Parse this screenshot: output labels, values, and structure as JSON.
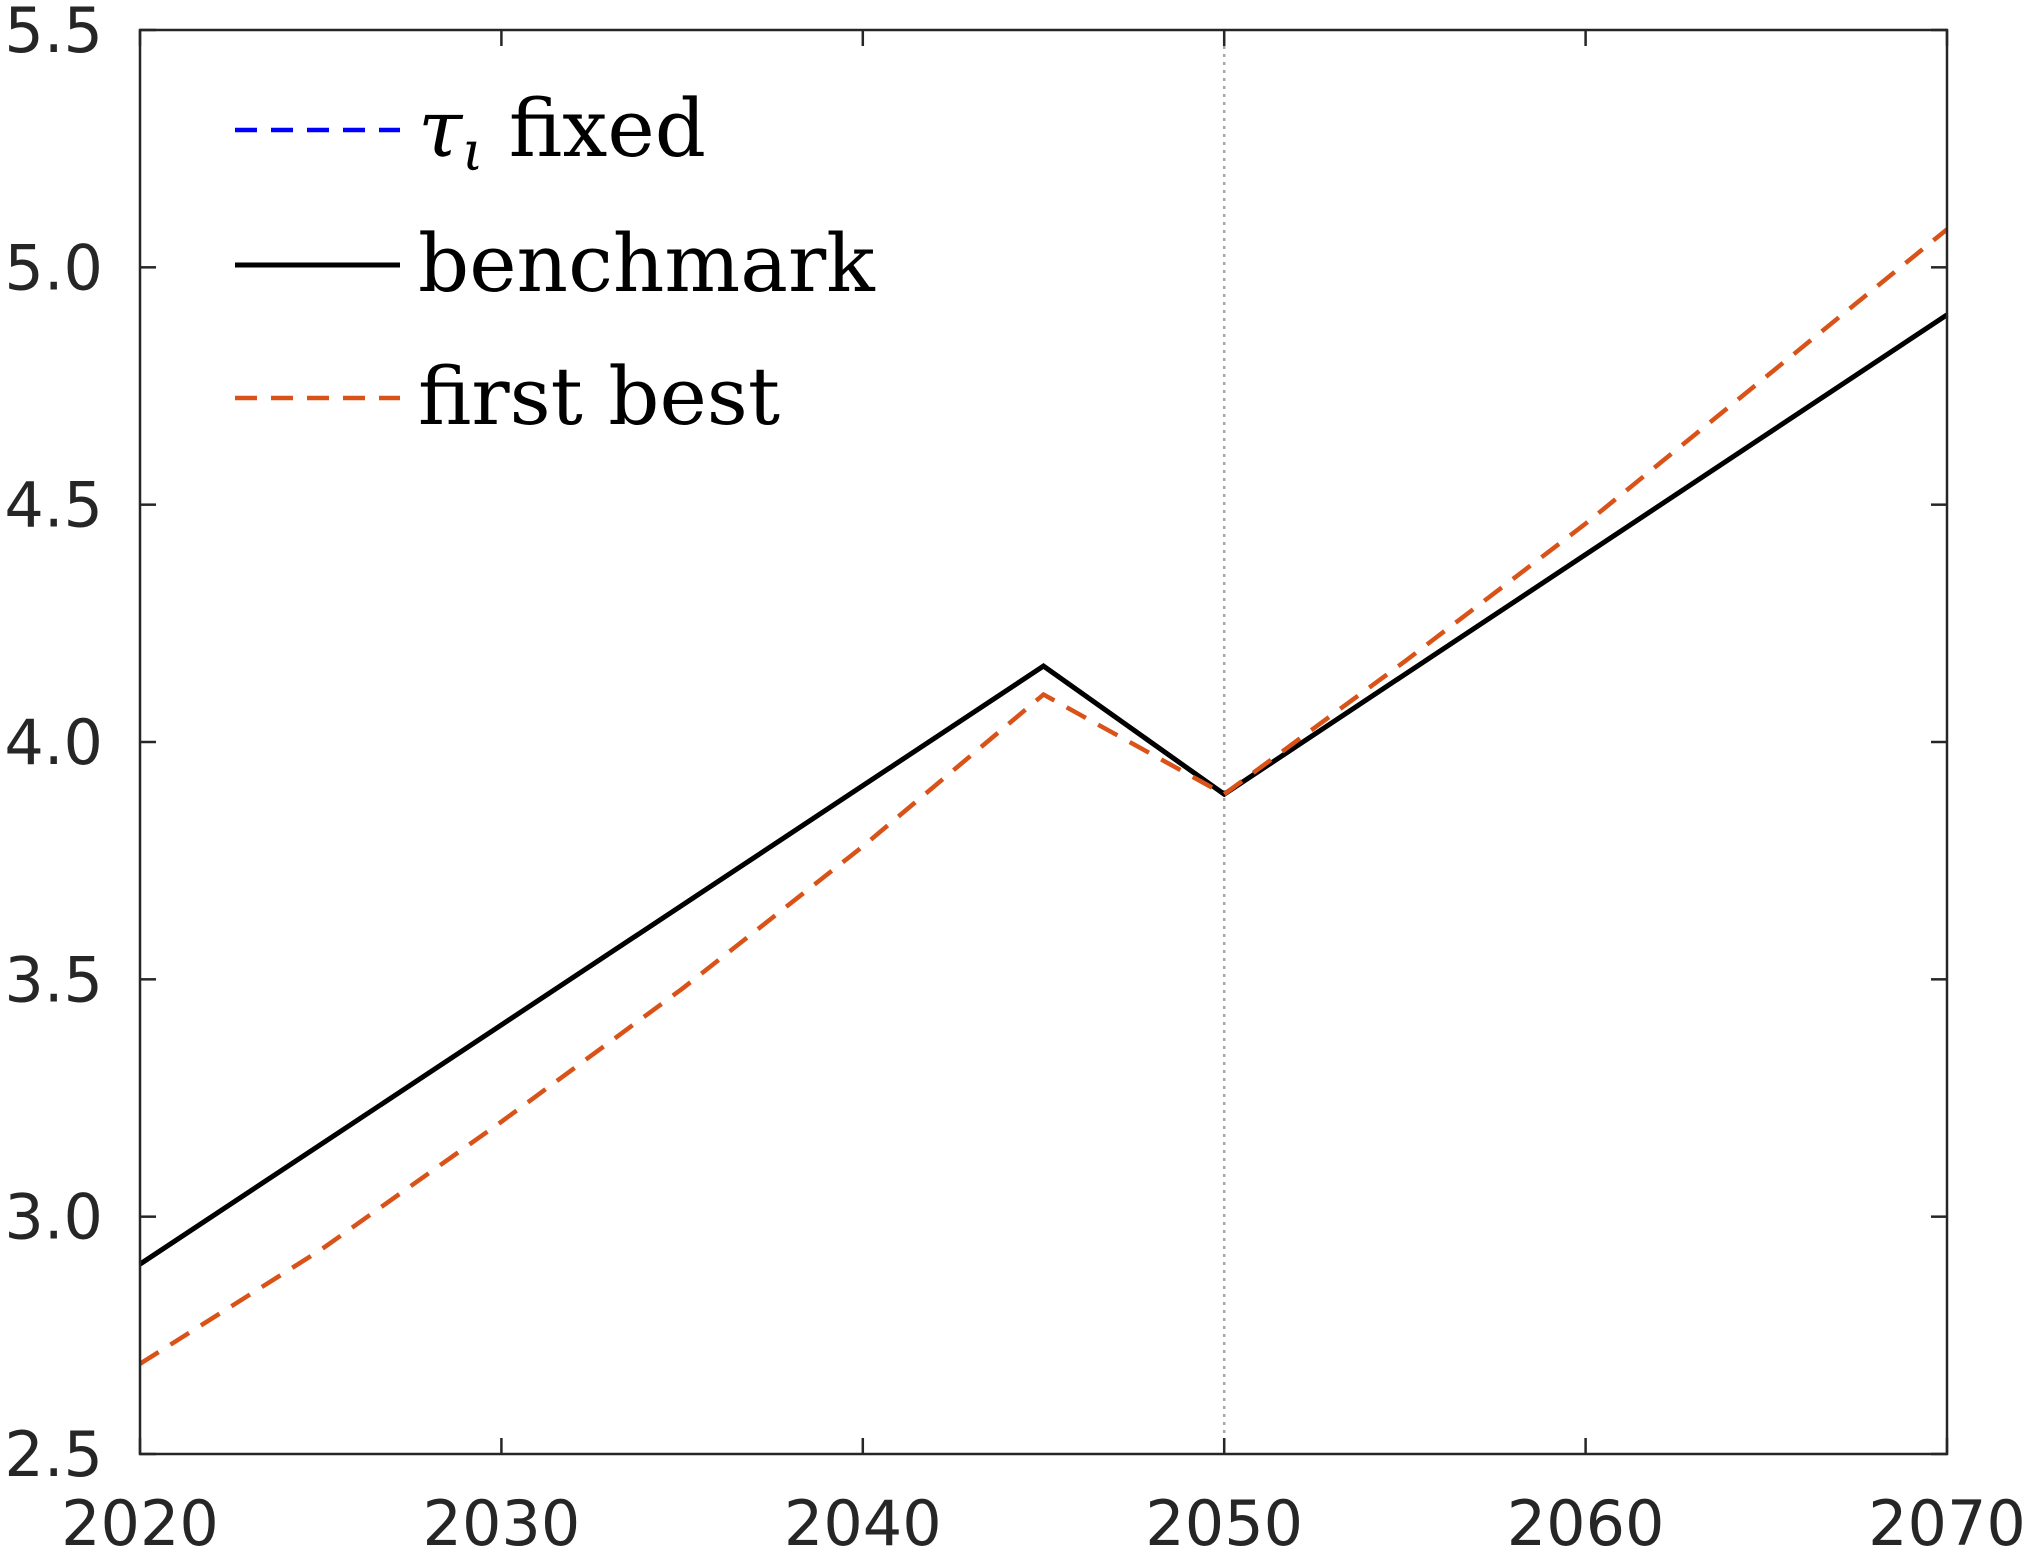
{
  "chart_data": {
    "type": "line",
    "title": "",
    "xlabel": "",
    "ylabel": "",
    "xlim": [
      2020,
      2070
    ],
    "ylim": [
      2.5,
      5.5
    ],
    "xticks": [
      2020,
      2030,
      2040,
      2050,
      2060,
      2070
    ],
    "xtick_labels": [
      "2020",
      "2030",
      "2040",
      "2050",
      "2060",
      "2070"
    ],
    "yticks": [
      2.5,
      3.0,
      3.5,
      4.0,
      4.5,
      5.0,
      5.5
    ],
    "ytick_labels": [
      "2.5",
      "3.0",
      "3.5",
      "4.0",
      "4.5",
      "5.0",
      "5.5"
    ],
    "grid": false,
    "legend_position": "top-left",
    "reference_line": {
      "x": 2050,
      "style": "dotted",
      "color": "#a6a6a6"
    },
    "series": [
      {
        "name": "τ_ι fixed",
        "legend_main": "τ",
        "legend_sub": "ι",
        "legend_rest": " fixed",
        "color": "#0000ff",
        "style": "dashed",
        "x": [
          2020,
          2045,
          2050,
          2070
        ],
        "y": [
          2.9,
          4.16,
          3.89,
          4.9
        ]
      },
      {
        "name": "benchmark",
        "legend_main": "benchmark",
        "legend_sub": "",
        "legend_rest": "",
        "color": "#000000",
        "style": "solid",
        "x": [
          2020,
          2045,
          2050,
          2070
        ],
        "y": [
          2.9,
          4.16,
          3.89,
          4.9
        ]
      },
      {
        "name": "first best",
        "legend_main": "first best",
        "legend_sub": "",
        "legend_rest": "",
        "color": "#d95319",
        "style": "dashed",
        "x": [
          2020,
          2025,
          2030,
          2035,
          2040,
          2045,
          2050,
          2055,
          2060,
          2065,
          2070
        ],
        "y": [
          2.69,
          2.93,
          3.2,
          3.48,
          3.78,
          4.1,
          3.89,
          4.17,
          4.46,
          4.77,
          5.08
        ]
      }
    ]
  }
}
